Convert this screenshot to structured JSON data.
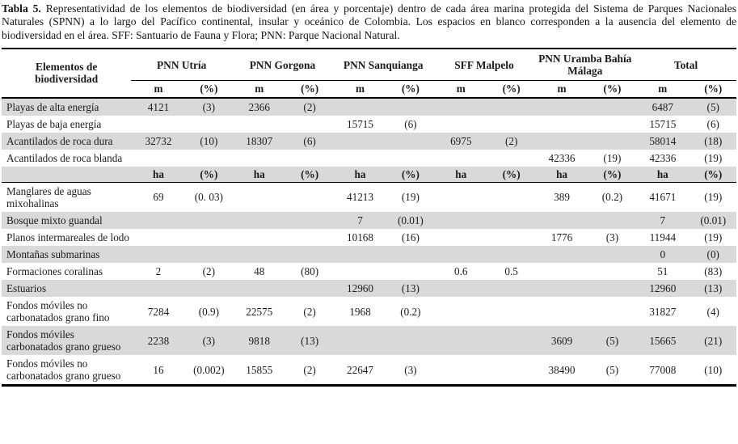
{
  "caption": {
    "label": "Tabla 5.",
    "text": " Representatividad de los elementos de biodiversidad (en área y porcentaje) dentro de cada área marina protegida del Sistema de Parques Nacionales Naturales (SPNN) a lo largo del Pacífico continental, insular y oceánico de Colombia. Los espacios en blanco corresponden a la ausencia del elemento de biodiversidad en el área. SFF: Santuario de Fauna y Flora; PNN: Parque Nacional Natural."
  },
  "table": {
    "row_header": "Elementos de biodiversidad",
    "groups": [
      "PNN Utría",
      "PNN Gorgona",
      "PNN Sanquianga",
      "SFF Malpelo",
      "PNN Uramba Bahía Málaga",
      "Total"
    ],
    "unit_row_m": [
      "m",
      "(%)",
      "m",
      "(%)",
      "m",
      "(%)",
      "m",
      "(%)",
      "m",
      "(%)",
      "m",
      "(%)"
    ],
    "unit_row_ha": [
      "ha",
      "(%)",
      "ha",
      "(%)",
      "ha",
      "(%)",
      "ha",
      "(%)",
      "ha",
      "(%)",
      "ha",
      "(%)"
    ],
    "rows_m": [
      {
        "label": "Playas de alta energía",
        "values": [
          "4121",
          "(3)",
          "2366",
          "(2)",
          "",
          "",
          "",
          "",
          "",
          "",
          "6487",
          "(5)"
        ]
      },
      {
        "label": "Playas de baja energía",
        "values": [
          "",
          "",
          "",
          "",
          "15715",
          "(6)",
          "",
          "",
          "",
          "",
          "15715",
          "(6)"
        ]
      },
      {
        "label": "Acantilados de roca dura",
        "values": [
          "32732",
          "(10)",
          "18307",
          "(6)",
          "",
          "",
          "6975",
          "(2)",
          "",
          "",
          "58014",
          "(18)"
        ]
      },
      {
        "label": "Acantilados de roca blanda",
        "values": [
          "",
          "",
          "",
          "",
          "",
          "",
          "",
          "",
          "42336",
          "(19)",
          "42336",
          "(19)"
        ]
      }
    ],
    "rows_ha": [
      {
        "label": "Manglares de aguas mixohalinas",
        "values": [
          "69",
          "(0. 03)",
          "",
          "",
          "41213",
          "(19)",
          "",
          "",
          "389",
          "(0.2)",
          "41671",
          "(19)"
        ]
      },
      {
        "label": "Bosque mixto guandal",
        "values": [
          "",
          "",
          "",
          "",
          "7",
          "(0.01)",
          "",
          "",
          "",
          "",
          "7",
          "(0.01)"
        ]
      },
      {
        "label": "Planos intermareales de lodo",
        "values": [
          "",
          "",
          "",
          "",
          "10168",
          "(16)",
          "",
          "",
          "1776",
          "(3)",
          "11944",
          "(19)"
        ]
      },
      {
        "label": "Montañas submarinas",
        "values": [
          "",
          "",
          "",
          "",
          "",
          "",
          "",
          "",
          "",
          "",
          "0",
          "(0)"
        ]
      },
      {
        "label": "Formaciones coralinas",
        "values": [
          "2",
          "(2)",
          "48",
          "(80)",
          "",
          "",
          "0.6",
          "0.5",
          "",
          "",
          "51",
          "(83)"
        ]
      },
      {
        "label": "Estuarios",
        "values": [
          "",
          "",
          "",
          "",
          "12960",
          "(13)",
          "",
          "",
          "",
          "",
          "12960",
          "(13)"
        ]
      },
      {
        "label": "Fondos móviles no carbonatados grano fino",
        "values": [
          "7284",
          "(0.9)",
          "22575",
          "(2)",
          "1968",
          "(0.2)",
          "",
          "",
          "",
          "",
          "31827",
          "(4)"
        ]
      },
      {
        "label": "Fondos móviles carbonatados grano grueso",
        "values": [
          "2238",
          "(3)",
          "9818",
          "(13)",
          "",
          "",
          "",
          "",
          "3609",
          "(5)",
          "15665",
          "(21)"
        ]
      },
      {
        "label": "Fondos móviles no carbonatados grano grueso",
        "values": [
          "16",
          "(0.002)",
          "15855",
          "(2)",
          "22647",
          "(3)",
          "",
          "",
          "38490",
          "(5)",
          "77008",
          "(10)"
        ]
      }
    ]
  },
  "colors": {
    "stripe_row_bg": "#d9d9d9",
    "rule": "#000000",
    "text": "#1b1b1b"
  }
}
